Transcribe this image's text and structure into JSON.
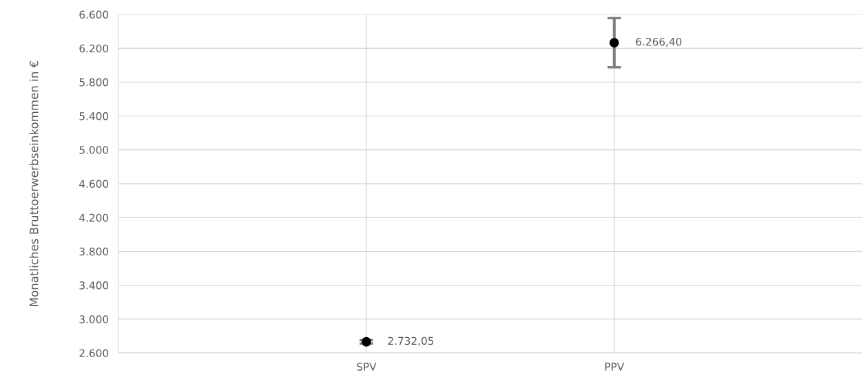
{
  "chart_data": {
    "type": "scatter",
    "ylabel": "Monatliches Bruttoerwerbseinkommen in €",
    "categories": [
      "SPV",
      "PPV"
    ],
    "series": [
      {
        "color": "#000000",
        "values": [
          2732.05,
          6266.4
        ],
        "errors": [
          20,
          290
        ],
        "value_labels": [
          "2.732,05",
          "6.266,40"
        ]
      }
    ],
    "ylim": [
      2600,
      6600
    ],
    "yticks": [
      {
        "value": 2600,
        "label": "2.600"
      },
      {
        "value": 3000,
        "label": "3.000"
      },
      {
        "value": 3400,
        "label": "3.400"
      },
      {
        "value": 3800,
        "label": "3.800"
      },
      {
        "value": 4200,
        "label": "4.200"
      },
      {
        "value": 4600,
        "label": "4.600"
      },
      {
        "value": 5000,
        "label": "5.000"
      },
      {
        "value": 5400,
        "label": "5.400"
      },
      {
        "value": 5800,
        "label": "5.800"
      },
      {
        "value": 6200,
        "label": "6.200"
      },
      {
        "value": 6600,
        "label": "6.600"
      }
    ],
    "grid": true,
    "marker": "circle"
  }
}
